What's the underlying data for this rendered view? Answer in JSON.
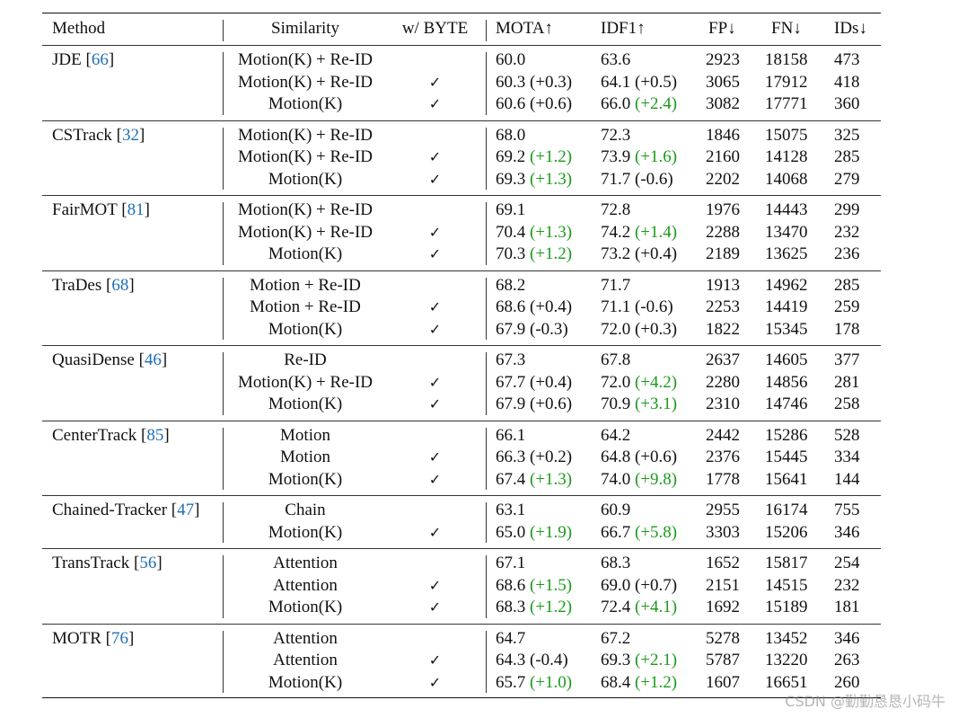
{
  "header": {
    "method": "Method",
    "similarity": "Similarity",
    "byte": "w/ BYTE",
    "mota": "MOTA↑",
    "idf1": "IDF1↑",
    "fp": "FP↓",
    "fn": "FN↓",
    "ids": "IDs↓"
  },
  "check_symbol": "✓",
  "colors": {
    "citation": "#1f6fb5",
    "improvement": "#1a9a1a"
  },
  "blocks": [
    {
      "method": "JDE",
      "cite": "66",
      "rows": [
        {
          "sim": "Motion(K) + Re-ID",
          "byte": false,
          "mota": "60.0",
          "mota_d": "",
          "mota_g": false,
          "idf1": "63.6",
          "idf1_d": "",
          "idf1_g": false,
          "fp": "2923",
          "fn": "18158",
          "ids": "473"
        },
        {
          "sim": "Motion(K) + Re-ID",
          "byte": true,
          "mota": "60.3",
          "mota_d": "(+0.3)",
          "mota_g": false,
          "idf1": "64.1",
          "idf1_d": "(+0.5)",
          "idf1_g": false,
          "fp": "3065",
          "fn": "17912",
          "ids": "418"
        },
        {
          "sim": "Motion(K)",
          "byte": true,
          "mota": "60.6",
          "mota_d": "(+0.6)",
          "mota_g": false,
          "idf1": "66.0",
          "idf1_d": "(+2.4)",
          "idf1_g": true,
          "fp": "3082",
          "fn": "17771",
          "ids": "360"
        }
      ]
    },
    {
      "method": "CSTrack",
      "cite": "32",
      "rows": [
        {
          "sim": "Motion(K) + Re-ID",
          "byte": false,
          "mota": "68.0",
          "mota_d": "",
          "mota_g": false,
          "idf1": "72.3",
          "idf1_d": "",
          "idf1_g": false,
          "fp": "1846",
          "fn": "15075",
          "ids": "325"
        },
        {
          "sim": "Motion(K) + Re-ID",
          "byte": true,
          "mota": "69.2",
          "mota_d": "(+1.2)",
          "mota_g": true,
          "idf1": "73.9",
          "idf1_d": "(+1.6)",
          "idf1_g": true,
          "fp": "2160",
          "fn": "14128",
          "ids": "285"
        },
        {
          "sim": "Motion(K)",
          "byte": true,
          "mota": "69.3",
          "mota_d": "(+1.3)",
          "mota_g": true,
          "idf1": "71.7",
          "idf1_d": "(-0.6)",
          "idf1_g": false,
          "fp": "2202",
          "fn": "14068",
          "ids": "279"
        }
      ]
    },
    {
      "method": "FairMOT",
      "cite": "81",
      "rows": [
        {
          "sim": "Motion(K) + Re-ID",
          "byte": false,
          "mota": "69.1",
          "mota_d": "",
          "mota_g": false,
          "idf1": "72.8",
          "idf1_d": "",
          "idf1_g": false,
          "fp": "1976",
          "fn": "14443",
          "ids": "299"
        },
        {
          "sim": "Motion(K) + Re-ID",
          "byte": true,
          "mota": "70.4",
          "mota_d": "(+1.3)",
          "mota_g": true,
          "idf1": "74.2",
          "idf1_d": "(+1.4)",
          "idf1_g": true,
          "fp": "2288",
          "fn": "13470",
          "ids": "232"
        },
        {
          "sim": "Motion(K)",
          "byte": true,
          "mota": "70.3",
          "mota_d": "(+1.2)",
          "mota_g": true,
          "idf1": "73.2",
          "idf1_d": "(+0.4)",
          "idf1_g": false,
          "fp": "2189",
          "fn": "13625",
          "ids": "236"
        }
      ]
    },
    {
      "method": "TraDes",
      "cite": "68",
      "rows": [
        {
          "sim": "Motion + Re-ID",
          "byte": false,
          "mota": "68.2",
          "mota_d": "",
          "mota_g": false,
          "idf1": "71.7",
          "idf1_d": "",
          "idf1_g": false,
          "fp": "1913",
          "fn": "14962",
          "ids": "285"
        },
        {
          "sim": "Motion + Re-ID",
          "byte": true,
          "mota": "68.6",
          "mota_d": "(+0.4)",
          "mota_g": false,
          "idf1": "71.1",
          "idf1_d": "(-0.6)",
          "idf1_g": false,
          "fp": "2253",
          "fn": "14419",
          "ids": "259"
        },
        {
          "sim": "Motion(K)",
          "byte": true,
          "mota": "67.9",
          "mota_d": "(-0.3)",
          "mota_g": false,
          "idf1": "72.0",
          "idf1_d": "(+0.3)",
          "idf1_g": false,
          "fp": "1822",
          "fn": "15345",
          "ids": "178"
        }
      ]
    },
    {
      "method": "QuasiDense",
      "cite": "46",
      "rows": [
        {
          "sim": "Re-ID",
          "byte": false,
          "mota": "67.3",
          "mota_d": "",
          "mota_g": false,
          "idf1": "67.8",
          "idf1_d": "",
          "idf1_g": false,
          "fp": "2637",
          "fn": "14605",
          "ids": "377"
        },
        {
          "sim": "Motion(K) + Re-ID",
          "byte": true,
          "mota": "67.7",
          "mota_d": "(+0.4)",
          "mota_g": false,
          "idf1": "72.0",
          "idf1_d": "(+4.2)",
          "idf1_g": true,
          "fp": "2280",
          "fn": "14856",
          "ids": "281"
        },
        {
          "sim": "Motion(K)",
          "byte": true,
          "mota": "67.9",
          "mota_d": "(+0.6)",
          "mota_g": false,
          "idf1": "70.9",
          "idf1_d": "(+3.1)",
          "idf1_g": true,
          "fp": "2310",
          "fn": "14746",
          "ids": "258"
        }
      ]
    },
    {
      "method": "CenterTrack",
      "cite": "85",
      "rows": [
        {
          "sim": "Motion",
          "byte": false,
          "mota": "66.1",
          "mota_d": "",
          "mota_g": false,
          "idf1": "64.2",
          "idf1_d": "",
          "idf1_g": false,
          "fp": "2442",
          "fn": "15286",
          "ids": "528"
        },
        {
          "sim": "Motion",
          "byte": true,
          "mota": "66.3",
          "mota_d": "(+0.2)",
          "mota_g": false,
          "idf1": "64.8",
          "idf1_d": "(+0.6)",
          "idf1_g": false,
          "fp": "2376",
          "fn": "15445",
          "ids": "334"
        },
        {
          "sim": "Motion(K)",
          "byte": true,
          "mota": "67.4",
          "mota_d": "(+1.3)",
          "mota_g": true,
          "idf1": "74.0",
          "idf1_d": "(+9.8)",
          "idf1_g": true,
          "fp": "1778",
          "fn": "15641",
          "ids": "144"
        }
      ]
    },
    {
      "method": "Chained-Tracker",
      "cite": "47",
      "rows": [
        {
          "sim": "Chain",
          "byte": false,
          "mota": "63.1",
          "mota_d": "",
          "mota_g": false,
          "idf1": "60.9",
          "idf1_d": "",
          "idf1_g": false,
          "fp": "2955",
          "fn": "16174",
          "ids": "755"
        },
        {
          "sim": "Motion(K)",
          "byte": true,
          "mota": "65.0",
          "mota_d": "(+1.9)",
          "mota_g": true,
          "idf1": "66.7",
          "idf1_d": "(+5.8)",
          "idf1_g": true,
          "fp": "3303",
          "fn": "15206",
          "ids": "346"
        }
      ]
    },
    {
      "method": "TransTrack",
      "cite": "56",
      "rows": [
        {
          "sim": "Attention",
          "byte": false,
          "mota": "67.1",
          "mota_d": "",
          "mota_g": false,
          "idf1": "68.3",
          "idf1_d": "",
          "idf1_g": false,
          "fp": "1652",
          "fn": "15817",
          "ids": "254"
        },
        {
          "sim": "Attention",
          "byte": true,
          "mota": "68.6",
          "mota_d": "(+1.5)",
          "mota_g": true,
          "idf1": "69.0",
          "idf1_d": "(+0.7)",
          "idf1_g": false,
          "fp": "2151",
          "fn": "14515",
          "ids": "232"
        },
        {
          "sim": "Motion(K)",
          "byte": true,
          "mota": "68.3",
          "mota_d": "(+1.2)",
          "mota_g": true,
          "idf1": "72.4",
          "idf1_d": "(+4.1)",
          "idf1_g": true,
          "fp": "1692",
          "fn": "15189",
          "ids": "181"
        }
      ]
    },
    {
      "method": "MOTR",
      "cite": "76",
      "rows": [
        {
          "sim": "Attention",
          "byte": false,
          "mota": "64.7",
          "mota_d": "",
          "mota_g": false,
          "idf1": "67.2",
          "idf1_d": "",
          "idf1_g": false,
          "fp": "5278",
          "fn": "13452",
          "ids": "346"
        },
        {
          "sim": "Attention",
          "byte": true,
          "mota": "64.3",
          "mota_d": "(-0.4)",
          "mota_g": false,
          "idf1": "69.3",
          "idf1_d": "(+2.1)",
          "idf1_g": true,
          "fp": "5787",
          "fn": "13220",
          "ids": "263"
        },
        {
          "sim": "Motion(K)",
          "byte": true,
          "mota": "65.7",
          "mota_d": "(+1.0)",
          "mota_g": true,
          "idf1": "68.4",
          "idf1_d": "(+1.2)",
          "idf1_g": true,
          "fp": "1607",
          "fn": "16651",
          "ids": "260"
        }
      ]
    }
  ],
  "watermark": "CSDN @勤勤恳恳小码牛"
}
